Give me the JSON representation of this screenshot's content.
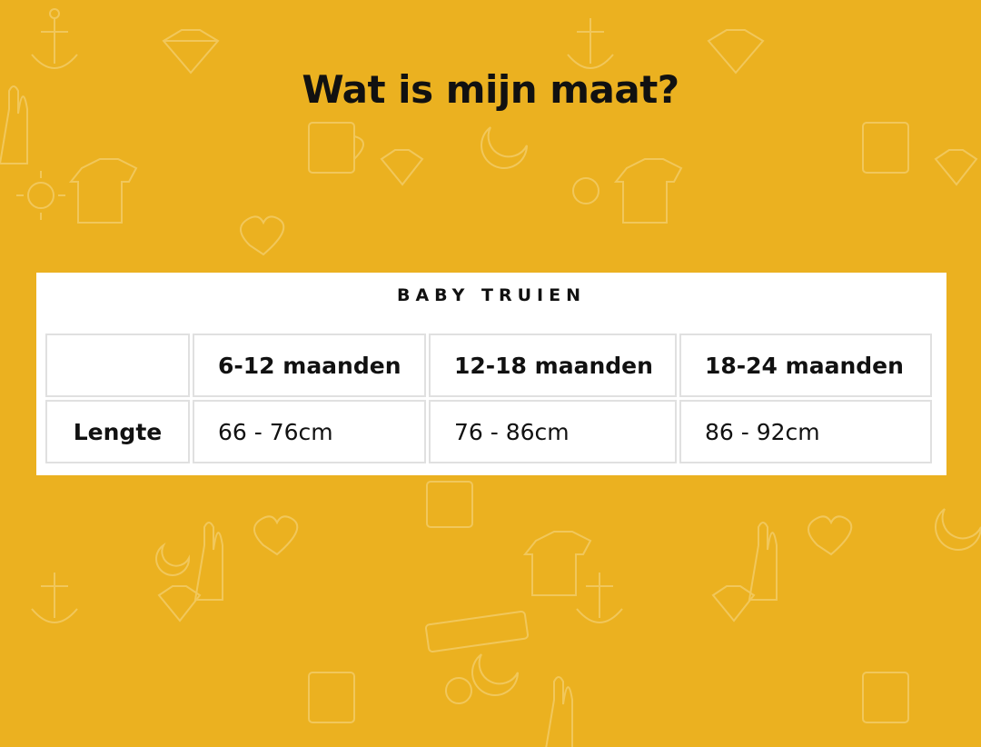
{
  "page": {
    "title": "Wat is mijn maat?"
  },
  "colors": {
    "background": "#ebb120",
    "pattern": "#f3cd6a",
    "card": "#ffffff",
    "border": "#e0e0e0"
  },
  "size_table": {
    "title": "BABY TRUIEN",
    "corner": "",
    "headers": [
      "6-12 maanden",
      "12-18 maanden",
      "18-24 maanden"
    ],
    "rows": [
      {
        "label": "Lengte",
        "values": [
          "66 - 76cm",
          "76 - 86cm",
          "86 - 92cm"
        ]
      }
    ]
  }
}
